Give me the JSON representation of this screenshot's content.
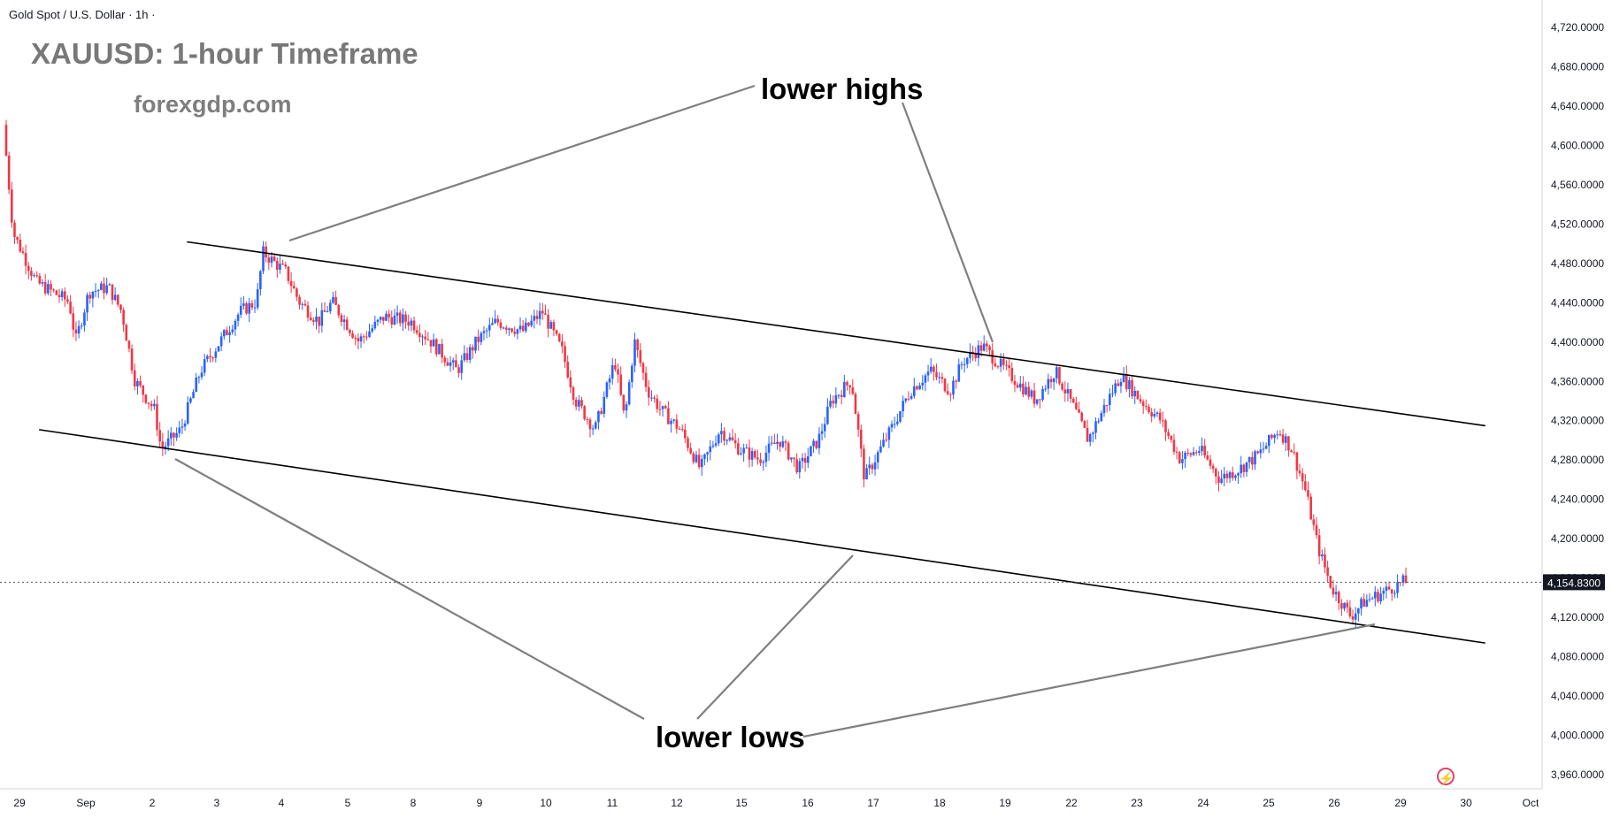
{
  "header": {
    "symbol_label": "Gold Spot / U.S. Dollar · 1h ·"
  },
  "title": "XAUUSD: 1-hour Timeframe",
  "site": "forexgdp.com",
  "annotations": {
    "lower_highs": "lower highs",
    "lower_lows": "lower lows"
  },
  "bolt_icon": "lightning-icon",
  "colors": {
    "up": "#2962ff",
    "down": "#f23645",
    "line": "#000000",
    "arrow": "#7f7f7f"
  },
  "chart_data": {
    "type": "candlestick",
    "symbol": "Gold Spot / U.S. Dollar",
    "timeframe": "1h",
    "current_price": "4,154.8300",
    "y_ticks": [
      "4,720.0000",
      "4,680.0000",
      "4,640.0000",
      "4,600.0000",
      "4,560.0000",
      "4,520.0000",
      "4,480.0000",
      "4,440.0000",
      "4,400.0000",
      "4,360.0000",
      "4,320.0000",
      "4,280.0000",
      "4,240.0000",
      "4,200.0000",
      "4,160.0000",
      "4,120.0000",
      "4,080.0000",
      "4,040.0000",
      "4,000.0000",
      "3,960.0000"
    ],
    "y_tick_values": [
      4720,
      4680,
      4640,
      4600,
      4560,
      4520,
      4480,
      4440,
      4400,
      4360,
      4320,
      4280,
      4240,
      4200,
      4160,
      4120,
      4080,
      4040,
      4000,
      3960
    ],
    "x_ticks": [
      "29",
      "Sep",
      "2",
      "3",
      "4",
      "5",
      "8",
      "9",
      "10",
      "11",
      "12",
      "15",
      "16",
      "17",
      "18",
      "19",
      "22",
      "23",
      "24",
      "25",
      "26",
      "29",
      "30",
      "Oct"
    ],
    "price_path": [
      [
        0,
        4620
      ],
      [
        0.15,
        4510
      ],
      [
        0.5,
        4460
      ],
      [
        1.0,
        4440
      ],
      [
        1.1,
        4400
      ],
      [
        1.3,
        4450
      ],
      [
        1.6,
        4455
      ],
      [
        1.8,
        4430
      ],
      [
        2.0,
        4360
      ],
      [
        2.3,
        4330
      ],
      [
        2.4,
        4290
      ],
      [
        2.7,
        4310
      ],
      [
        3.0,
        4370
      ],
      [
        3.3,
        4400
      ],
      [
        3.6,
        4430
      ],
      [
        3.85,
        4440
      ],
      [
        3.95,
        4490
      ],
      [
        4.3,
        4470
      ],
      [
        4.5,
        4440
      ],
      [
        4.8,
        4420
      ],
      [
        5.0,
        4440
      ],
      [
        5.4,
        4400
      ],
      [
        5.8,
        4425
      ],
      [
        6.2,
        4420
      ],
      [
        6.5,
        4400
      ],
      [
        6.9,
        4370
      ],
      [
        7.2,
        4400
      ],
      [
        7.5,
        4420
      ],
      [
        7.9,
        4410
      ],
      [
        8.2,
        4430
      ],
      [
        8.5,
        4390
      ],
      [
        8.7,
        4340
      ],
      [
        9.0,
        4310
      ],
      [
        9.3,
        4380
      ],
      [
        9.45,
        4320
      ],
      [
        9.6,
        4400
      ],
      [
        9.8,
        4350
      ],
      [
        10.0,
        4330
      ],
      [
        10.3,
        4310
      ],
      [
        10.6,
        4270
      ],
      [
        10.9,
        4310
      ],
      [
        11.2,
        4290
      ],
      [
        11.5,
        4280
      ],
      [
        11.8,
        4300
      ],
      [
        12.1,
        4270
      ],
      [
        12.4,
        4300
      ],
      [
        12.6,
        4340
      ],
      [
        12.9,
        4360
      ],
      [
        13.1,
        4260
      ],
      [
        13.5,
        4310
      ],
      [
        13.8,
        4350
      ],
      [
        14.1,
        4370
      ],
      [
        14.4,
        4350
      ],
      [
        14.6,
        4380
      ],
      [
        14.9,
        4395
      ],
      [
        15.1,
        4380
      ],
      [
        15.4,
        4360
      ],
      [
        15.7,
        4340
      ],
      [
        16.0,
        4370
      ],
      [
        16.3,
        4330
      ],
      [
        16.5,
        4300
      ],
      [
        16.8,
        4340
      ],
      [
        17.0,
        4365
      ],
      [
        17.3,
        4340
      ],
      [
        17.6,
        4320
      ],
      [
        17.9,
        4280
      ],
      [
        18.2,
        4290
      ],
      [
        18.5,
        4260
      ],
      [
        18.8,
        4270
      ],
      [
        19.1,
        4285
      ],
      [
        19.4,
        4310
      ],
      [
        19.6,
        4290
      ],
      [
        19.8,
        4250
      ],
      [
        20.0,
        4190
      ],
      [
        20.2,
        4150
      ],
      [
        20.5,
        4120
      ],
      [
        20.7,
        4135
      ],
      [
        21.0,
        4145
      ],
      [
        21.3,
        4155
      ]
    ],
    "trendlines": [
      {
        "name": "upper channel",
        "p1": [
          2.75,
          4501
        ],
        "p2": [
          22.5,
          4314
        ]
      },
      {
        "name": "lower channel",
        "p1": [
          0.5,
          4310
        ],
        "p2": [
          22.5,
          4093
        ]
      }
    ]
  }
}
